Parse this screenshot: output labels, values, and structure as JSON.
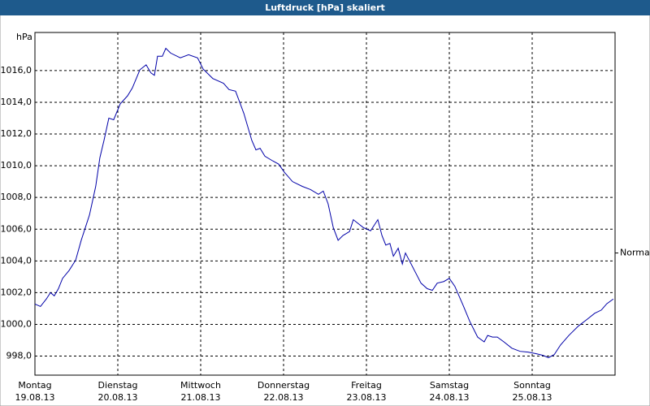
{
  "chart_data": {
    "type": "line",
    "title": "Luftdruck [hPa] skaliert",
    "y_unit": "hPa",
    "annotation": {
      "label": "Normal",
      "value": 1004.5
    },
    "xlim": [
      0,
      168
    ],
    "ylim": [
      996.8,
      1018.4
    ],
    "xticks": [
      {
        "value": 0,
        "label": "Montag",
        "date": "19.08.13"
      },
      {
        "value": 24,
        "label": "Dienstag",
        "date": "20.08.13"
      },
      {
        "value": 48,
        "label": "Mittwoch",
        "date": "21.08.13"
      },
      {
        "value": 72,
        "label": "Donnerstag",
        "date": "22.08.13"
      },
      {
        "value": 96,
        "label": "Freitag",
        "date": "23.08.13"
      },
      {
        "value": 120,
        "label": "Samstag",
        "date": "24.08.13"
      },
      {
        "value": 144,
        "label": "Sonntag",
        "date": "25.08.13"
      }
    ],
    "yticks": [
      {
        "value": 998,
        "label": "998,0"
      },
      {
        "value": 1000,
        "label": "1000,0"
      },
      {
        "value": 1002,
        "label": "1002,0"
      },
      {
        "value": 1004,
        "label": "1004,0"
      },
      {
        "value": 1006,
        "label": "1006,0"
      },
      {
        "value": 1008,
        "label": "1008,0"
      },
      {
        "value": 1010,
        "label": "1010,0"
      },
      {
        "value": 1012,
        "label": "1012,0"
      },
      {
        "value": 1014,
        "label": "1014,0"
      },
      {
        "value": 1016,
        "label": "1016,0"
      }
    ],
    "grid": true,
    "series": [
      {
        "color": "#0000a8",
        "x": [
          0,
          1.6,
          3.3,
          4.5,
          5.6,
          6.8,
          8,
          9.9,
          11.8,
          13.4,
          15.8,
          17.6,
          18.8,
          20,
          21.4,
          22.8,
          24.7,
          26.8,
          28.2,
          30.4,
          32.2,
          33.6,
          34.6,
          35.5,
          36.9,
          37.9,
          39.3,
          42.1,
          44.5,
          47.1,
          48.7,
          51.5,
          54.6,
          56.2,
          58.1,
          60.5,
          62.8,
          64,
          65.2,
          66.6,
          68.9,
          70.6,
          72.2,
          74.6,
          77.4,
          79.8,
          82.1,
          83.5,
          84.9,
          86.4,
          87.8,
          89.2,
          91.1,
          92.2,
          95.1,
          97.2,
          99.3,
          100.5,
          101.6,
          102.8,
          103.8,
          105.2,
          106.4,
          107.3,
          109.9,
          111.8,
          113.6,
          115.1,
          116.5,
          118.4,
          120,
          121.6,
          124,
          125.9,
          128.2,
          130.1,
          131.1,
          132.5,
          133.9,
          135.8,
          138.1,
          140.5,
          142.8,
          145.2,
          147.1,
          148.7,
          150.4,
          152.2,
          154.6,
          157.4,
          159.8,
          162.1,
          164,
          165.6,
          167.5
        ],
        "values": [
          1001.28,
          1001.13,
          1001.6,
          1002.0,
          1001.8,
          1002.25,
          1002.9,
          1003.4,
          1004.05,
          1005.3,
          1006.9,
          1008.7,
          1010.5,
          1011.6,
          1013.0,
          1012.9,
          1013.9,
          1014.4,
          1014.9,
          1016.05,
          1016.36,
          1015.85,
          1015.7,
          1016.9,
          1016.9,
          1017.4,
          1017.1,
          1016.8,
          1017.0,
          1016.8,
          1016.1,
          1015.5,
          1015.2,
          1014.8,
          1014.7,
          1013.3,
          1011.6,
          1011.0,
          1011.1,
          1010.6,
          1010.3,
          1010.1,
          1009.6,
          1009.0,
          1008.7,
          1008.5,
          1008.2,
          1008.4,
          1007.6,
          1006.1,
          1005.3,
          1005.6,
          1005.85,
          1006.6,
          1006.1,
          1005.9,
          1006.6,
          1005.6,
          1005.0,
          1005.1,
          1004.3,
          1004.8,
          1003.8,
          1004.5,
          1003.4,
          1002.6,
          1002.25,
          1002.15,
          1002.6,
          1002.7,
          1002.9,
          1002.4,
          1001.2,
          1000.2,
          999.2,
          998.9,
          999.3,
          999.2,
          999.2,
          998.9,
          998.5,
          998.3,
          998.25,
          998.15,
          998.05,
          997.9,
          998.1,
          998.7,
          999.3,
          999.9,
          1000.3,
          1000.7,
          1000.9,
          1001.3,
          1001.6
        ]
      }
    ]
  }
}
